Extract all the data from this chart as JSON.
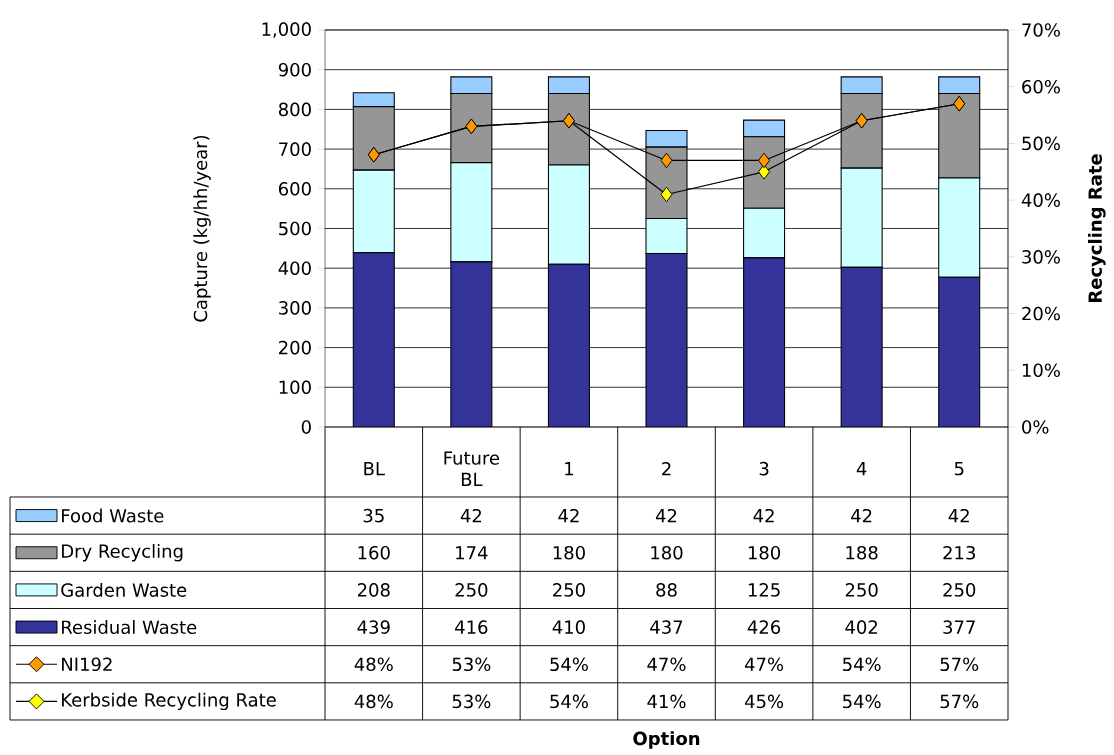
{
  "chart_data": {
    "type": "bar",
    "stacked": true,
    "annotations": [
      "Option"
    ],
    "ylabel": "Capture (kg/hh/year)",
    "y2label": "Recycling Rate",
    "categories": [
      "BL",
      "Future BL",
      "1",
      "2",
      "3",
      "4",
      "5"
    ],
    "series": [
      {
        "name": "Residual Waste",
        "color": "#333399",
        "values": [
          439,
          416,
          410,
          437,
          426,
          402,
          377
        ],
        "value_labels": [
          "439",
          "416",
          "410",
          "437",
          "426",
          "402",
          "377"
        ]
      },
      {
        "name": "Garden Waste",
        "color": "#ccffff",
        "values": [
          208,
          250,
          250,
          88,
          125,
          250,
          250
        ],
        "value_labels": [
          "208",
          "250",
          "250",
          "88",
          "125",
          "250",
          "250"
        ]
      },
      {
        "name": "Dry Recycling",
        "color": "#969696",
        "values": [
          160,
          174,
          180,
          180,
          180,
          188,
          213
        ],
        "value_labels": [
          "160",
          "174",
          "180",
          "180",
          "180",
          "188",
          "213"
        ]
      },
      {
        "name": "Food Waste",
        "color": "#99ccff",
        "values": [
          35,
          42,
          42,
          42,
          42,
          42,
          42
        ],
        "value_labels": [
          "35",
          "42",
          "42",
          "42",
          "42",
          "42",
          "42"
        ]
      },
      {
        "name": "NI192",
        "type": "line",
        "axis": "y2",
        "color": "#ff9900",
        "values": [
          48,
          53,
          54,
          47,
          47,
          54,
          57
        ],
        "value_labels": [
          "48%",
          "53%",
          "54%",
          "47%",
          "47%",
          "54%",
          "57%"
        ]
      },
      {
        "name": "Kerbside Recycling Rate",
        "type": "line",
        "axis": "y2",
        "color": "#ffff00",
        "values": [
          48,
          53,
          54,
          41,
          45,
          54,
          57
        ],
        "value_labels": [
          "48%",
          "53%",
          "54%",
          "41%",
          "45%",
          "54%",
          "57%"
        ]
      }
    ],
    "ylim": [
      0,
      1000
    ],
    "yticks": [
      0,
      100,
      200,
      300,
      400,
      500,
      600,
      700,
      800,
      900,
      {
        "value": 1000,
        "label": "1,000"
      }
    ],
    "y2lim": [
      0,
      70
    ],
    "y2ticks": [
      {
        "value": 0,
        "label": "0%"
      },
      {
        "value": 10,
        "label": "10%"
      },
      {
        "value": 20,
        "label": "20%"
      },
      {
        "value": 30,
        "label": "30%"
      },
      {
        "value": 40,
        "label": "40%"
      },
      {
        "value": 50,
        "label": "50%"
      },
      {
        "value": 60,
        "label": "60%"
      },
      {
        "value": 70,
        "label": "70%"
      }
    ],
    "grid": "y",
    "legend": "bottom",
    "marker": "diamond",
    "line_style": "solid"
  }
}
